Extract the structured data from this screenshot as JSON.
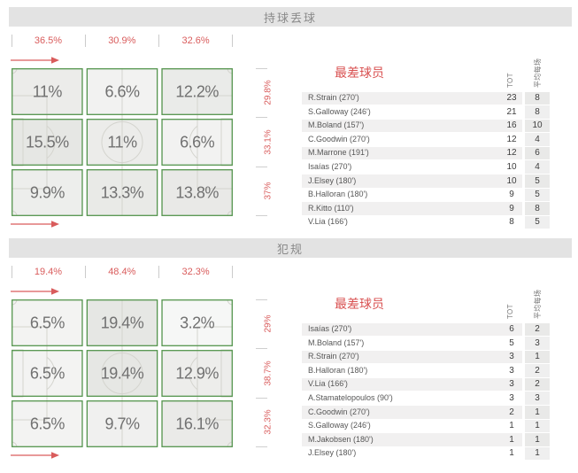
{
  "colors": {
    "accent_red": "#d95c5c",
    "pitch_green": "#55954e",
    "title_bar_bg": "#e3e3e3",
    "title_text": "#8a8a8a",
    "zebra_row": "#f1f0f0",
    "pitch_line": "#d4d4ce",
    "cell_text": "#717171"
  },
  "sections": [
    {
      "id": "ball-losses",
      "title": "持球丢球",
      "grid": {
        "col_percents": [
          "36.5%",
          "30.9%",
          "32.6%"
        ],
        "row_percents": [
          "29.8%",
          "33.1%",
          "37%"
        ],
        "cells": [
          [
            "11%",
            "6.6%",
            "12.2%"
          ],
          [
            "15.5%",
            "11%",
            "6.6%"
          ],
          [
            "9.9%",
            "13.3%",
            "13.8%"
          ]
        ],
        "cell_values": [
          [
            11,
            6.6,
            12.2
          ],
          [
            15.5,
            11,
            6.6
          ],
          [
            9.9,
            13.3,
            13.8
          ]
        ],
        "attack_direction": "right"
      },
      "table": {
        "title": "最差球员",
        "columns": [
          "TOT",
          "平均每场"
        ],
        "rows": [
          {
            "player": "R.Strain (270')",
            "tot": "23",
            "avg": "8"
          },
          {
            "player": "S.Galloway (246')",
            "tot": "21",
            "avg": "8"
          },
          {
            "player": "M.Boland (157')",
            "tot": "16",
            "avg": "10"
          },
          {
            "player": "C.Goodwin (270')",
            "tot": "12",
            "avg": "4"
          },
          {
            "player": "M.Marrone (191')",
            "tot": "12",
            "avg": "6"
          },
          {
            "player": "Isaías (270')",
            "tot": "10",
            "avg": "4"
          },
          {
            "player": "J.Elsey (180')",
            "tot": "10",
            "avg": "5"
          },
          {
            "player": "B.Halloran (180')",
            "tot": "9",
            "avg": "5"
          },
          {
            "player": "R.Kitto (110')",
            "tot": "9",
            "avg": "8"
          },
          {
            "player": "V.Lia (166')",
            "tot": "8",
            "avg": "5"
          }
        ]
      }
    },
    {
      "id": "fouls",
      "title": "犯规",
      "grid": {
        "col_percents": [
          "19.4%",
          "48.4%",
          "32.3%"
        ],
        "row_percents": [
          "29%",
          "38.7%",
          "32.3%"
        ],
        "cells": [
          [
            "6.5%",
            "19.4%",
            "3.2%"
          ],
          [
            "6.5%",
            "19.4%",
            "12.9%"
          ],
          [
            "6.5%",
            "9.7%",
            "16.1%"
          ]
        ],
        "cell_values": [
          [
            6.5,
            19.4,
            3.2
          ],
          [
            6.5,
            19.4,
            12.9
          ],
          [
            6.5,
            9.7,
            16.1
          ]
        ],
        "attack_direction": "right"
      },
      "table": {
        "title": "最差球员",
        "columns": [
          "TOT",
          "平均每场"
        ],
        "rows": [
          {
            "player": "Isaías (270')",
            "tot": "6",
            "avg": "2"
          },
          {
            "player": "M.Boland (157')",
            "tot": "5",
            "avg": "3"
          },
          {
            "player": "R.Strain (270')",
            "tot": "3",
            "avg": "1"
          },
          {
            "player": "B.Halloran (180')",
            "tot": "3",
            "avg": "2"
          },
          {
            "player": "V.Lia (166')",
            "tot": "3",
            "avg": "2"
          },
          {
            "player": "A.Stamatelopoulos (90')",
            "tot": "3",
            "avg": "3"
          },
          {
            "player": "C.Goodwin (270')",
            "tot": "2",
            "avg": "1"
          },
          {
            "player": "S.Galloway (246')",
            "tot": "1",
            "avg": "1"
          },
          {
            "player": "M.Jakobsen (180')",
            "tot": "1",
            "avg": "1"
          },
          {
            "player": "J.Elsey (180')",
            "tot": "1",
            "avg": "1"
          }
        ]
      }
    }
  ]
}
